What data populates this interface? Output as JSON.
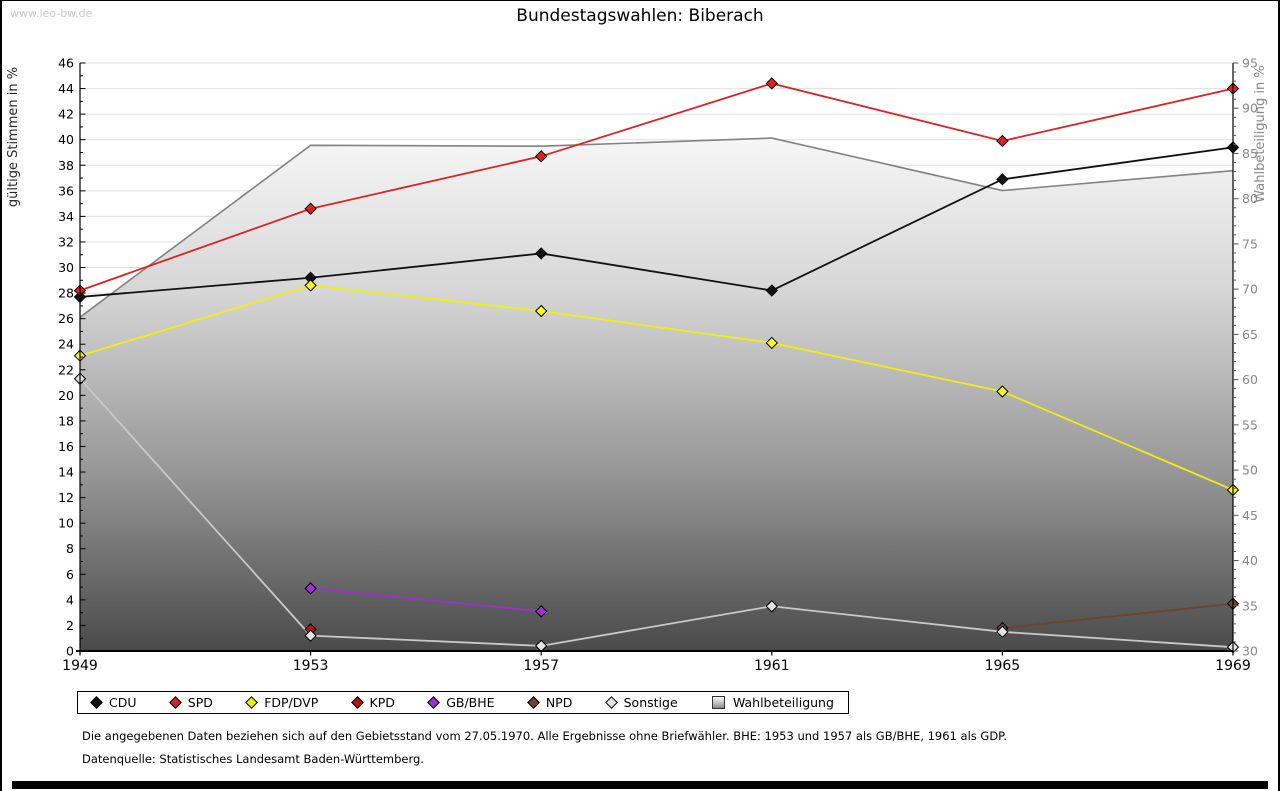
{
  "watermark": "www.leo-bw.de",
  "title": "Bundestagswahlen: Biberach",
  "footnotes": {
    "line1": "Die angegebenen Daten beziehen sich auf den Gebietsstand vom 27.05.1970. Alle Ergebnisse ohne Briefwähler. BHE: 1953 und 1957 als GB/BHE, 1961 als GDP.",
    "line2": "Datenquelle: Statistisches Landesamt Baden-Württemberg."
  },
  "legend": {
    "items": [
      {
        "label": "CDU",
        "marker": "diamond",
        "color": "#111111"
      },
      {
        "label": "SPD",
        "marker": "diamond",
        "color": "#dd2222"
      },
      {
        "label": "FDP/DVP",
        "marker": "diamond",
        "color": "#efef10"
      },
      {
        "label": "KPD",
        "marker": "diamond",
        "color": "#bb1111"
      },
      {
        "label": "GB/BHE",
        "marker": "diamond",
        "color": "#9933cc"
      },
      {
        "label": "NPD",
        "marker": "diamond",
        "color": "#6e4528"
      },
      {
        "label": "Sonstige",
        "marker": "diamond",
        "color": "#e3e3e3"
      },
      {
        "label": "Wahlbeteiligung",
        "marker": "square",
        "color": "gradient-gray"
      }
    ]
  },
  "chart_data": {
    "type": "line",
    "title": "Bundestagswahlen: Biberach",
    "x": [
      1949,
      1953,
      1957,
      1961,
      1965,
      1969
    ],
    "left_axis": {
      "label": "gültige Stimmen in %",
      "min": 0,
      "max": 46,
      "tick_step": 2,
      "minor_step": 1,
      "text_color": "#2a2a2a"
    },
    "right_axis": {
      "label": "Wahlbeteiligung in %",
      "min": 30,
      "max": 95,
      "tick_step": 5,
      "minor_step": 1,
      "text_color": "#888888"
    },
    "grid": {
      "horizontal": true,
      "color": "#e0e0e0"
    },
    "series": [
      {
        "name": "CDU",
        "axis": "left",
        "color": "#111111",
        "marker_fill": "#111111",
        "values": [
          27.7,
          29.2,
          31.1,
          28.2,
          36.9,
          39.4
        ]
      },
      {
        "name": "SPD",
        "axis": "left",
        "color": "#dd2222",
        "marker_fill": "#dd2222",
        "values": [
          28.2,
          34.6,
          38.7,
          44.4,
          39.9,
          44.0
        ]
      },
      {
        "name": "FDP/DVP",
        "axis": "left",
        "color": "#efef10",
        "marker_fill": "#f7f71e",
        "values": [
          23.1,
          28.6,
          26.6,
          24.1,
          20.3,
          12.6
        ]
      },
      {
        "name": "KPD",
        "axis": "left",
        "color": "#bb1111",
        "marker_fill": "#bb1111",
        "values": [
          null,
          1.7,
          null,
          null,
          null,
          null
        ]
      },
      {
        "name": "GB/BHE",
        "axis": "left",
        "color": "#9933cc",
        "marker_fill": "#9933cc",
        "values": [
          null,
          4.9,
          3.1,
          null,
          null,
          null
        ]
      },
      {
        "name": "NPD",
        "axis": "left",
        "color": "#6e4528",
        "marker_fill": "#6e4528",
        "values": [
          null,
          null,
          null,
          null,
          1.8,
          3.7
        ]
      },
      {
        "name": "Sonstige",
        "axis": "left",
        "color": "#c9c9c9",
        "marker_fill": "#e3e3e3",
        "values": [
          21.3,
          1.2,
          0.4,
          3.5,
          1.5,
          0.3
        ]
      }
    ],
    "area_series": {
      "name": "Wahlbeteiligung",
      "axis": "right",
      "line_color": "#828282",
      "values": [
        66.9,
        85.9,
        85.8,
        86.7,
        80.9,
        83.1
      ]
    }
  }
}
